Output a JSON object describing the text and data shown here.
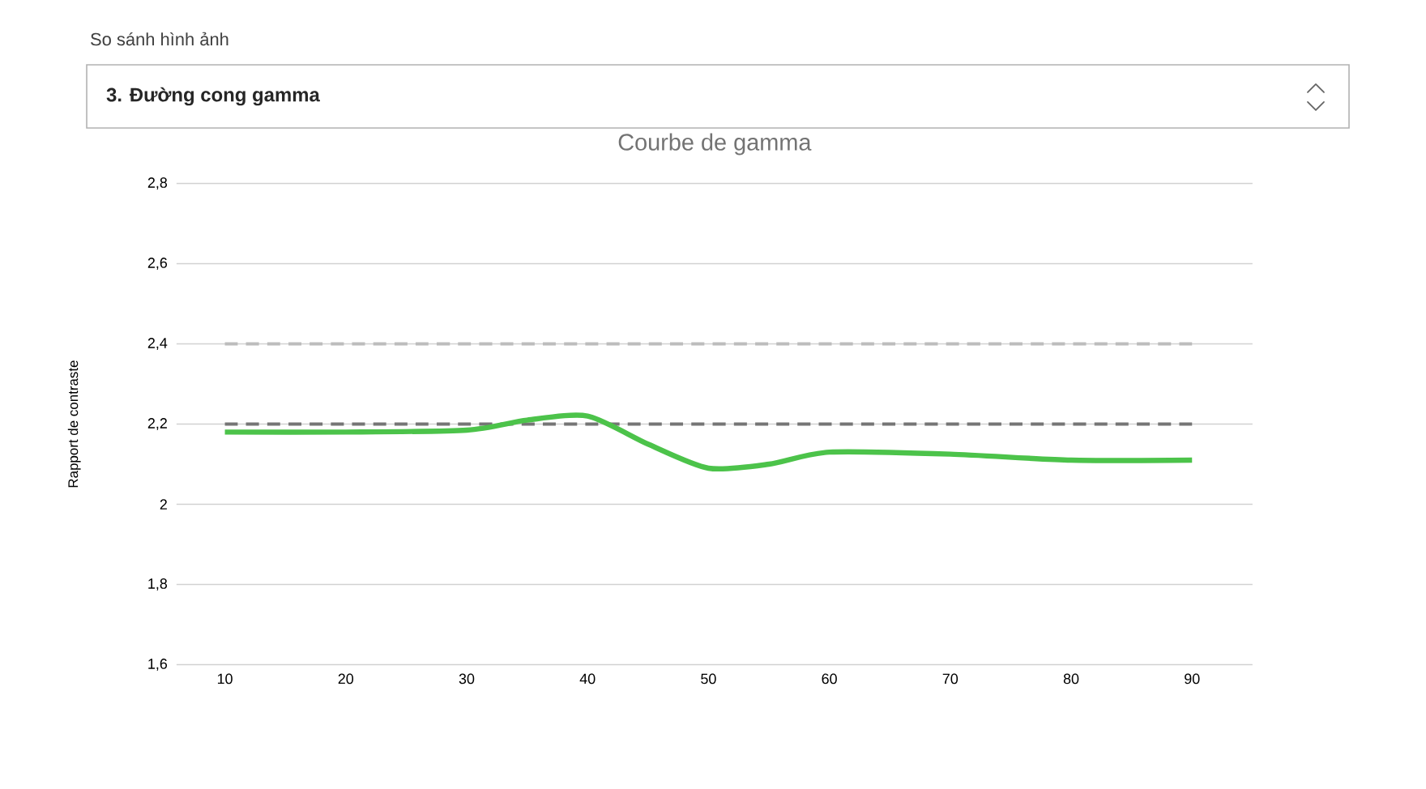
{
  "chart_data": {
    "type": "line",
    "title": "Courbe de gamma",
    "ylabel": "Rapport de contraste",
    "annotations": [
      "So sánh hình ảnh",
      "3. Đường cong gamma"
    ],
    "xlim": [
      6,
      95
    ],
    "xticks": [
      10,
      20,
      30,
      40,
      50,
      60,
      70,
      80,
      90
    ],
    "ylim": [
      1.6,
      2.8
    ],
    "yticks": [
      {
        "value": 1.6,
        "label": "1,6"
      },
      {
        "value": 1.8,
        "label": "1,8"
      },
      {
        "value": 2,
        "label": "2"
      },
      {
        "value": 2.2,
        "label": "2,2"
      },
      {
        "value": 2.4,
        "label": "2,4"
      },
      {
        "value": 2.6,
        "label": "2,6"
      },
      {
        "value": 2.8,
        "label": "2,8"
      }
    ],
    "grid": "y",
    "marker": "none",
    "series": [
      {
        "color": "#bdbdbd",
        "line_style": "dashed",
        "x": [
          10,
          90
        ],
        "values": [
          2.4,
          2.4
        ]
      },
      {
        "color": "#757575",
        "line_style": "dashed",
        "x": [
          10,
          90
        ],
        "values": [
          2.2,
          2.2
        ]
      },
      {
        "color": "#4cc34a",
        "line_style": "solid",
        "x": [
          10,
          20,
          30,
          35,
          40,
          45,
          50,
          55,
          60,
          70,
          80,
          90
        ],
        "values": [
          2.18,
          2.18,
          2.185,
          2.21,
          2.22,
          2.15,
          2.09,
          2.1,
          2.13,
          2.125,
          2.11,
          2.11
        ]
      }
    ]
  }
}
